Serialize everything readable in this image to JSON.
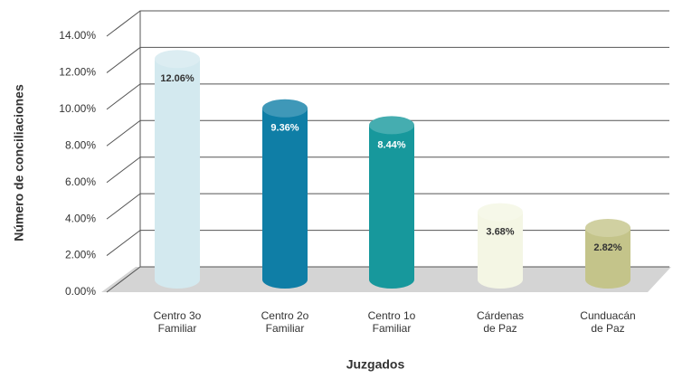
{
  "chart_data": {
    "type": "bar",
    "categories": [
      "Centro 3o Familiar",
      "Centro 2o Familiar",
      "Centro 1o Familiar",
      "Cárdenas de Paz",
      "Cunduacán de Paz"
    ],
    "values": [
      12.06,
      9.36,
      8.44,
      3.68,
      2.82
    ],
    "value_labels": [
      "12.06%",
      "9.36%",
      "8.44%",
      "3.68%",
      "2.82%"
    ],
    "colors": [
      "#d3e9ef",
      "#0f7ea6",
      "#17989c",
      "#f4f6e4",
      "#c4c48a"
    ],
    "x_label": "Juzgados",
    "y_label": "Número de conciliaciones",
    "ylim": [
      0,
      14
    ],
    "yticks": [
      {
        "value": 0,
        "label": "0.00%"
      },
      {
        "value": 2,
        "label": "2.00%"
      },
      {
        "value": 4,
        "label": "4.00%"
      },
      {
        "value": 6,
        "label": "6.00%"
      },
      {
        "value": 8,
        "label": "8.00%"
      },
      {
        "value": 10,
        "label": "10.00%"
      },
      {
        "value": 12,
        "label": "12.00%"
      },
      {
        "value": 14,
        "label": "14.00%"
      }
    ],
    "grid": true
  }
}
